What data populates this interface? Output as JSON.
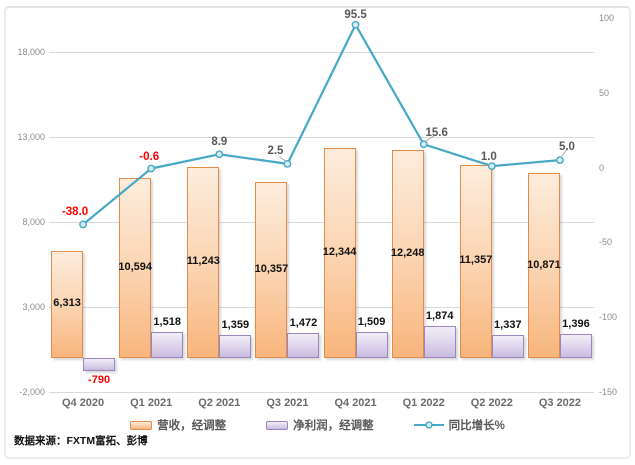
{
  "chart_data": {
    "type": "combo-bar-line",
    "categories": [
      "Q4 2020",
      "Q1 2021",
      "Q2 2021",
      "Q3 2021",
      "Q4 2021",
      "Q1 2022",
      "Q2 2022",
      "Q3 2022"
    ],
    "series": [
      {
        "name": "营收，经调整",
        "type": "bar",
        "axis": "left",
        "values": [
          6313,
          10594,
          11243,
          10357,
          12344,
          12248,
          11357,
          10871
        ],
        "labels": [
          "6,313",
          "10,594",
          "11,243",
          "10,357",
          "12,344",
          "12,248",
          "11,357",
          "10,871"
        ]
      },
      {
        "name": "净利润，经调整",
        "type": "bar",
        "axis": "left",
        "values": [
          -790,
          1518,
          1359,
          1472,
          1509,
          1874,
          1337,
          1396
        ],
        "labels": [
          "-790",
          "1,518",
          "1,359",
          "1,472",
          "1,509",
          "1,874",
          "1,337",
          "1,396"
        ]
      },
      {
        "name": "同比增长%",
        "type": "line",
        "axis": "right",
        "values": [
          -38.0,
          -0.6,
          8.9,
          2.5,
          95.5,
          15.6,
          1.0,
          5.0
        ],
        "labels": [
          "-38.0",
          "-0.6",
          "8.9",
          "2.5",
          "95.5",
          "15.6",
          "1.0",
          "5.0"
        ]
      }
    ],
    "left_axis": {
      "min": -2000,
      "max": 20000,
      "tick_values": [
        18000,
        13000,
        8000,
        3000,
        -2000
      ],
      "tick_labels": [
        "18,000",
        "13,000",
        "8,000",
        "3,000",
        "-2,000"
      ]
    },
    "right_axis": {
      "min": -150,
      "max": 100,
      "tick_values": [
        100,
        50,
        0,
        -50,
        -100,
        -150
      ],
      "tick_labels": [
        "100",
        "50",
        "0",
        "-50",
        "-100",
        "-150"
      ]
    },
    "grid": true,
    "legend_position": "bottom",
    "colors": {
      "revenue_border": "#e18c4b",
      "revenue_fill_top": "#fdeddd",
      "revenue_fill_bottom": "#f8b57c",
      "profit_border": "#9b85bd",
      "profit_fill_top": "#f1eef7",
      "profit_fill_bottom": "#c9bcdf",
      "line": "#45a8c4",
      "marker_fill": "#d8ebf3",
      "negative_label": "#ff0000",
      "data_label": "#595959",
      "axis_label": "#8c8c8c",
      "gridline": "#d9d9d9"
    }
  },
  "source_note": "数据来源：FXTM富拓、彭博"
}
